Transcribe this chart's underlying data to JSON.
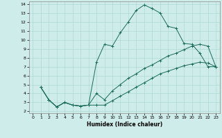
{
  "xlabel": "Humidex (Indice chaleur)",
  "bg_color": "#ceecea",
  "grid_color": "#aed8d4",
  "line_color": "#1a6b5a",
  "xlim": [
    -0.5,
    23.5
  ],
  "ylim": [
    1.8,
    14.3
  ],
  "xticks": [
    0,
    1,
    2,
    3,
    4,
    5,
    6,
    7,
    8,
    9,
    10,
    11,
    12,
    13,
    14,
    15,
    16,
    17,
    18,
    19,
    20,
    21,
    22,
    23
  ],
  "yticks": [
    2,
    3,
    4,
    5,
    6,
    7,
    8,
    9,
    10,
    11,
    12,
    13,
    14
  ],
  "curve1_x": [
    1,
    2,
    3,
    4,
    5,
    6,
    7,
    8,
    9,
    10,
    11,
    12,
    13,
    14,
    15,
    16,
    17,
    18,
    19,
    20,
    21,
    22,
    23
  ],
  "curve1_y": [
    4.7,
    3.3,
    2.5,
    3.0,
    2.7,
    2.6,
    2.7,
    7.5,
    9.5,
    9.3,
    10.8,
    12.0,
    13.3,
    13.9,
    13.5,
    13.0,
    11.5,
    11.3,
    9.6,
    9.5,
    8.5,
    7.0,
    7.0
  ],
  "curve2_x": [
    1,
    2,
    3,
    4,
    5,
    6,
    7,
    8,
    9,
    10,
    11,
    12,
    13,
    14,
    15,
    16,
    17,
    18,
    19,
    20,
    21,
    22,
    23
  ],
  "curve2_y": [
    4.7,
    3.3,
    2.5,
    3.0,
    2.7,
    2.6,
    2.7,
    4.0,
    3.3,
    4.3,
    5.0,
    5.7,
    6.2,
    6.8,
    7.2,
    7.7,
    8.2,
    8.5,
    8.9,
    9.3,
    9.5,
    9.3,
    7.0
  ],
  "curve3_x": [
    1,
    2,
    3,
    4,
    5,
    6,
    7,
    8,
    9,
    10,
    11,
    12,
    13,
    14,
    15,
    16,
    17,
    18,
    19,
    20,
    21,
    22,
    23
  ],
  "curve3_y": [
    4.7,
    3.3,
    2.5,
    3.0,
    2.7,
    2.6,
    2.7,
    2.7,
    2.7,
    3.2,
    3.7,
    4.2,
    4.7,
    5.2,
    5.7,
    6.2,
    6.5,
    6.8,
    7.1,
    7.3,
    7.5,
    7.4,
    7.0
  ]
}
